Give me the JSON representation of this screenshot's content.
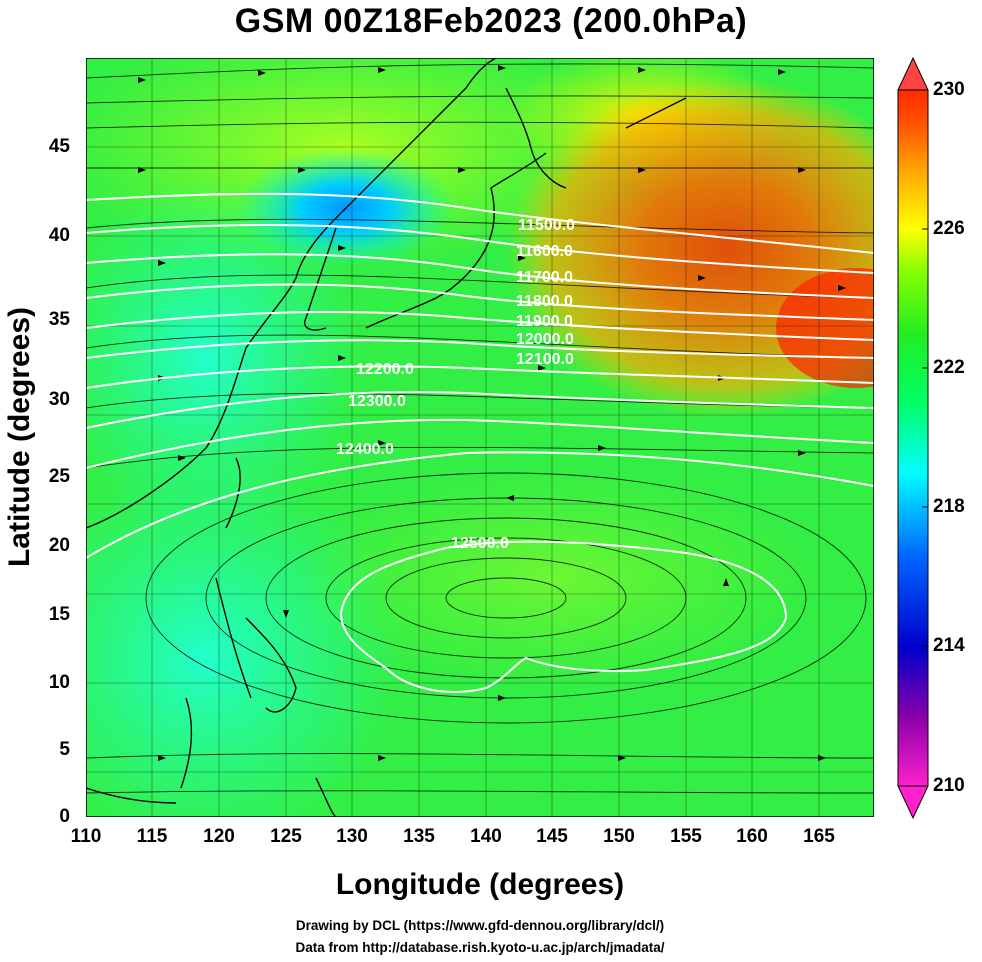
{
  "title": "GSM 00Z18Feb2023 (200.0hPa)",
  "xlabel": "Longitude (degrees)",
  "ylabel": "Latitude  (degrees)",
  "xticks": [
    "110",
    "115",
    "120",
    "125",
    "130",
    "135",
    "140",
    "145",
    "150",
    "155",
    "160",
    "165"
  ],
  "yticks": [
    "0",
    "5",
    "10",
    "15",
    "20",
    "25",
    "30",
    "35",
    "40",
    "45"
  ],
  "colorbar": {
    "ticks": [
      "210",
      "214",
      "218",
      "222",
      "226",
      "230"
    ],
    "colors": [
      "#ff22cc",
      "#8800aa",
      "#0000cc",
      "#0066ff",
      "#00ffff",
      "#00ff66",
      "#22ee22",
      "#88ff00",
      "#ffff00",
      "#ffaa00",
      "#ff5500",
      "#ff2a00"
    ]
  },
  "contours": [
    {
      "label": "11500.0"
    },
    {
      "label": "11600.0"
    },
    {
      "label": "11700.0"
    },
    {
      "label": "11800.0"
    },
    {
      "label": "11900.0"
    },
    {
      "label": "12000.0"
    },
    {
      "label": "12100.0"
    },
    {
      "label": "12200.0"
    },
    {
      "label": "12300.0"
    },
    {
      "label": "12400.0"
    },
    {
      "label": "12500.0"
    }
  ],
  "credits": {
    "line1": "Drawing by DCL (https://www.gfd-dennou.org/library/dcl/)",
    "line2": "Data from http://database.rish.kyoto-u.ac.jp/arch/jmadata/"
  }
}
